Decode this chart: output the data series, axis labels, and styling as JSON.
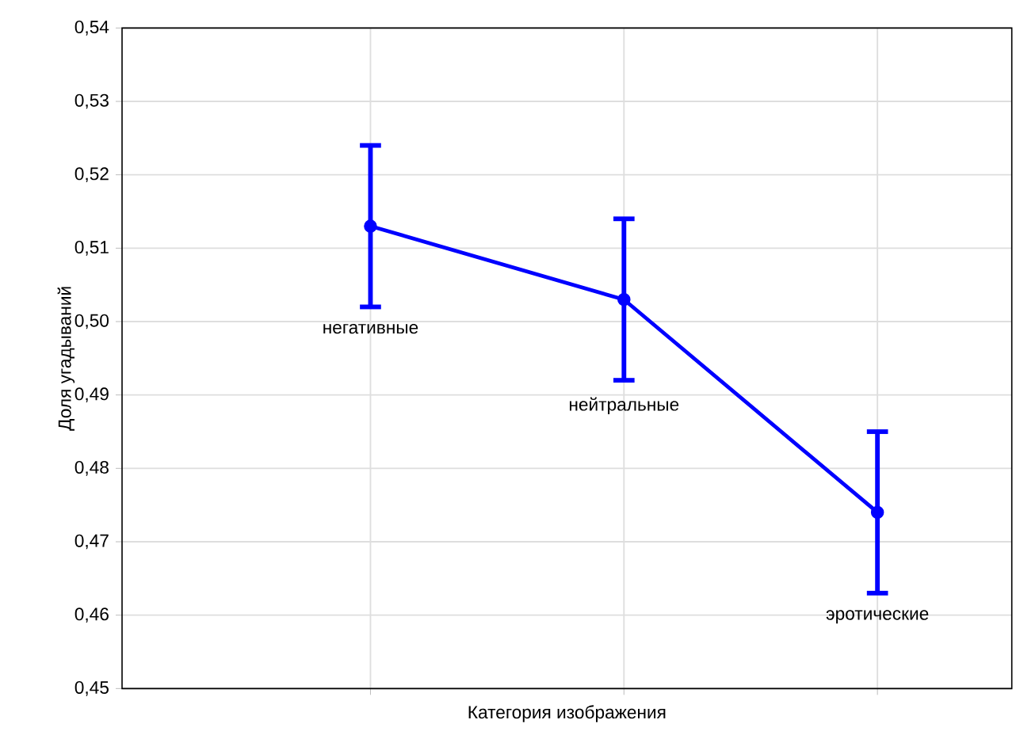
{
  "chart_data": {
    "type": "line",
    "xlabel": "Категория изображения",
    "ylabel": "Доля угадываний",
    "categories": [
      "негативные",
      "нейтральные",
      "эротические"
    ],
    "series": [
      {
        "color": "#0000ff",
        "values": [
          0.513,
          0.503,
          0.474
        ],
        "errors": [
          [
            0.502,
            0.524
          ],
          [
            0.492,
            0.514
          ],
          [
            0.463,
            0.485
          ]
        ]
      }
    ],
    "ylim": [
      0.45,
      0.54
    ],
    "yticks": [
      {
        "value": 0.45,
        "label": "0,45"
      },
      {
        "value": 0.46,
        "label": "0,46"
      },
      {
        "value": 0.47,
        "label": "0,47"
      },
      {
        "value": 0.48,
        "label": "0,48"
      },
      {
        "value": 0.49,
        "label": "0,49"
      },
      {
        "value": 0.5,
        "label": "0,50"
      },
      {
        "value": 0.51,
        "label": "0,51"
      },
      {
        "value": 0.52,
        "label": "0,52"
      },
      {
        "value": 0.53,
        "label": "0,53"
      },
      {
        "value": 0.54,
        "label": "0,54"
      }
    ],
    "grid": true,
    "tick_labels": "y",
    "marker": "circle",
    "line_style": "solid"
  }
}
